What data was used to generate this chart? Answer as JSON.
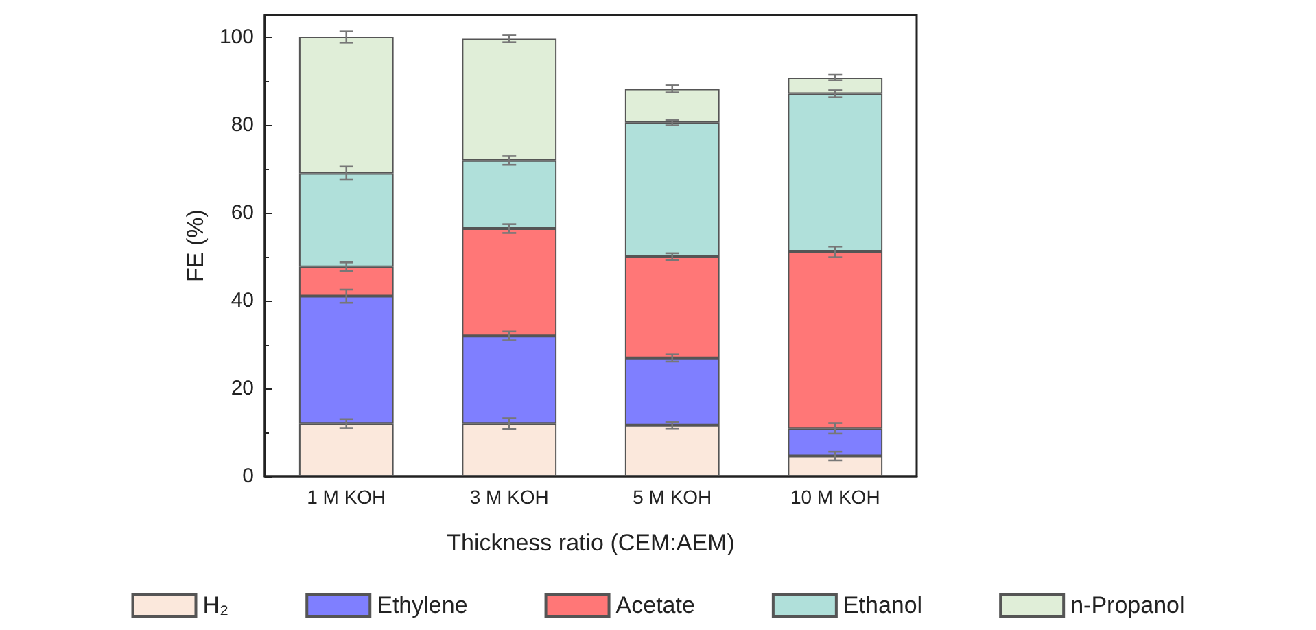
{
  "chart_data": {
    "type": "bar",
    "stacked": true,
    "xlabel": "Thickness ratio (CEM:AEM)",
    "ylabel": "FE (%)",
    "categories": [
      "1 M KOH",
      "3 M KOH",
      "5 M KOH",
      "10 M KOH"
    ],
    "ylim": [
      0,
      105
    ],
    "yticks": [
      0,
      20,
      40,
      60,
      80,
      100
    ],
    "grid": false,
    "legend": "bottom",
    "series": [
      {
        "name": "H₂",
        "color": "#fbe8dc",
        "values": [
          12,
          12,
          11.6,
          4.6
        ],
        "errors": [
          1,
          1.2,
          0.7,
          1
        ]
      },
      {
        "name": "Ethylene",
        "color": "#7f7fff",
        "values": [
          29,
          20,
          15.3,
          6.3
        ],
        "errors": [
          1.5,
          1,
          0.8,
          1.2
        ]
      },
      {
        "name": "Acetate",
        "color": "#ff7777",
        "values": [
          6.7,
          24.4,
          23.1,
          40.2
        ],
        "errors": [
          1,
          1,
          0.8,
          1.2
        ]
      },
      {
        "name": "Ethanol",
        "color": "#b0e0da",
        "values": [
          21.3,
          15.5,
          30.5,
          36
        ],
        "errors": [
          1.5,
          1,
          0.6,
          0.8
        ]
      },
      {
        "name": "n-Propanol",
        "color": "#e0eed8",
        "values": [
          31,
          27.7,
          7.7,
          3.7
        ],
        "errors": [
          1.3,
          0.8,
          0.8,
          0.6
        ]
      }
    ]
  }
}
